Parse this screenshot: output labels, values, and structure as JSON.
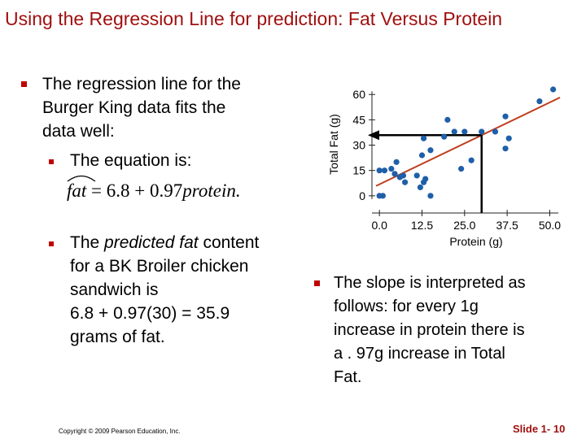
{
  "title": "Using the Regression Line for prediction: Fat Versus Protein",
  "left": {
    "bullet1": [
      "The regression line for the",
      "Burger King data fits the",
      "data well:"
    ],
    "sub1": "The equation is:",
    "equation": {
      "lhs": "fat",
      "eq": "=",
      "a": "6.8",
      "plus": "+",
      "b": "0.97",
      "var": "protein."
    },
    "bullet2_lines": [
      {
        "pre": "The ",
        "em": "predicted fat",
        "post": " content"
      },
      {
        "pre": "for a BK Broiler chicken",
        "em": "",
        "post": ""
      },
      {
        "pre": "sandwich is",
        "em": "",
        "post": ""
      },
      {
        "pre": "6.8 + 0.97(30) = 35.9",
        "em": "",
        "post": ""
      },
      {
        "pre": "grams of fat.",
        "em": "",
        "post": ""
      }
    ]
  },
  "right": {
    "bullet_lines": [
      "The slope is interpreted as",
      "follows: for every 1g",
      "increase in protein there is",
      "a . 97g increase in Total",
      "Fat."
    ]
  },
  "footer": {
    "copyright": "Copyright © 2009 Pearson Education, Inc.",
    "slide": "Slide 1- 10"
  },
  "colors": {
    "title": "#a01010",
    "bullet": "#c00000",
    "points": "#1f5fa8",
    "line": "#c04020"
  },
  "chart_data": {
    "type": "scatter",
    "xlabel": "Protein (g)",
    "ylabel": "Total Fat (g)",
    "x_ticks": [
      "0.0",
      "12.5",
      "25.0",
      "37.5",
      "50.0"
    ],
    "y_ticks": [
      "0",
      "15",
      "30",
      "45",
      "60"
    ],
    "xlim": [
      -1,
      53
    ],
    "ylim": [
      -2,
      63
    ],
    "points": [
      {
        "x": 0,
        "y": 0
      },
      {
        "x": 1,
        "y": 0
      },
      {
        "x": 0,
        "y": 15
      },
      {
        "x": 1.5,
        "y": 15
      },
      {
        "x": 3.5,
        "y": 16
      },
      {
        "x": 4.5,
        "y": 13
      },
      {
        "x": 5,
        "y": 20
      },
      {
        "x": 6,
        "y": 11
      },
      {
        "x": 7,
        "y": 12
      },
      {
        "x": 7.5,
        "y": 8
      },
      {
        "x": 11,
        "y": 12
      },
      {
        "x": 12,
        "y": 5
      },
      {
        "x": 13,
        "y": 8
      },
      {
        "x": 12.5,
        "y": 24
      },
      {
        "x": 13,
        "y": 34
      },
      {
        "x": 13.5,
        "y": 10
      },
      {
        "x": 15,
        "y": 27
      },
      {
        "x": 15,
        "y": 0
      },
      {
        "x": 19,
        "y": 35
      },
      {
        "x": 20,
        "y": 45
      },
      {
        "x": 22,
        "y": 38
      },
      {
        "x": 24,
        "y": 16
      },
      {
        "x": 25,
        "y": 38
      },
      {
        "x": 27,
        "y": 21
      },
      {
        "x": 30,
        "y": 38
      },
      {
        "x": 34,
        "y": 38
      },
      {
        "x": 37,
        "y": 28
      },
      {
        "x": 38,
        "y": 34
      },
      {
        "x": 37,
        "y": 47
      },
      {
        "x": 47,
        "y": 56
      },
      {
        "x": 51,
        "y": 63
      }
    ],
    "line": {
      "intercept": 6.8,
      "slope": 0.97,
      "x_range": [
        -1,
        53
      ]
    },
    "prediction": {
      "x": 30,
      "y": 35.9
    }
  }
}
